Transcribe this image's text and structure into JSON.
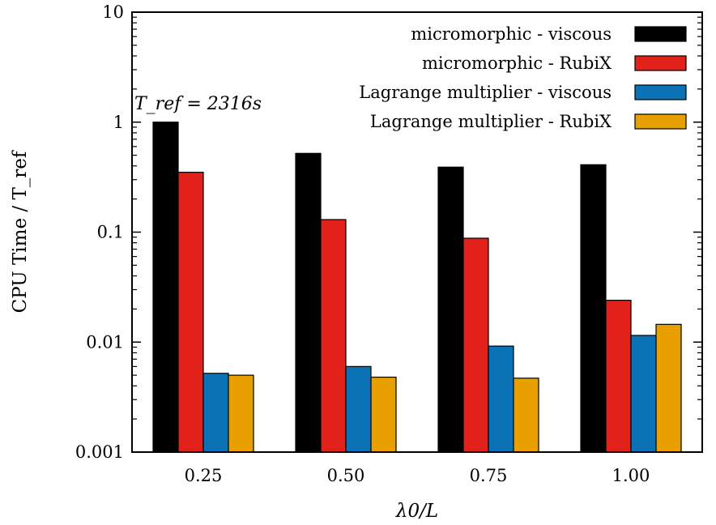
{
  "chart_data": {
    "type": "bar",
    "yscale": "log",
    "ylim": [
      0.001,
      10
    ],
    "ylabel": "CPU Time / T_ref",
    "xlabel": "λ0/L",
    "categories": [
      "0.25",
      "0.50",
      "0.75",
      "1.00"
    ],
    "yticks": [
      {
        "value": 0.001,
        "label": "0.001"
      },
      {
        "value": 0.01,
        "label": "0.01"
      },
      {
        "value": 0.1,
        "label": "0.1"
      },
      {
        "value": 1,
        "label": "1"
      },
      {
        "value": 10,
        "label": "10"
      }
    ],
    "grid": false,
    "legend_position": "top-right",
    "annotation": "T_ref = 2316s",
    "series": [
      {
        "name": "micromorphic - viscous",
        "color": "#000000",
        "values": [
          1.0,
          0.52,
          0.39,
          0.41
        ]
      },
      {
        "name": "micromorphic - RubiX",
        "color": "#e3211b",
        "values": [
          0.35,
          0.13,
          0.088,
          0.024
        ]
      },
      {
        "name": "Lagrange multiplier - viscous",
        "color": "#0a72b5",
        "values": [
          0.0052,
          0.006,
          0.0092,
          0.0115
        ]
      },
      {
        "name": "Lagrange multiplier - RubiX",
        "color": "#e8a000",
        "values": [
          0.005,
          0.0048,
          0.0047,
          0.0145
        ]
      }
    ]
  }
}
